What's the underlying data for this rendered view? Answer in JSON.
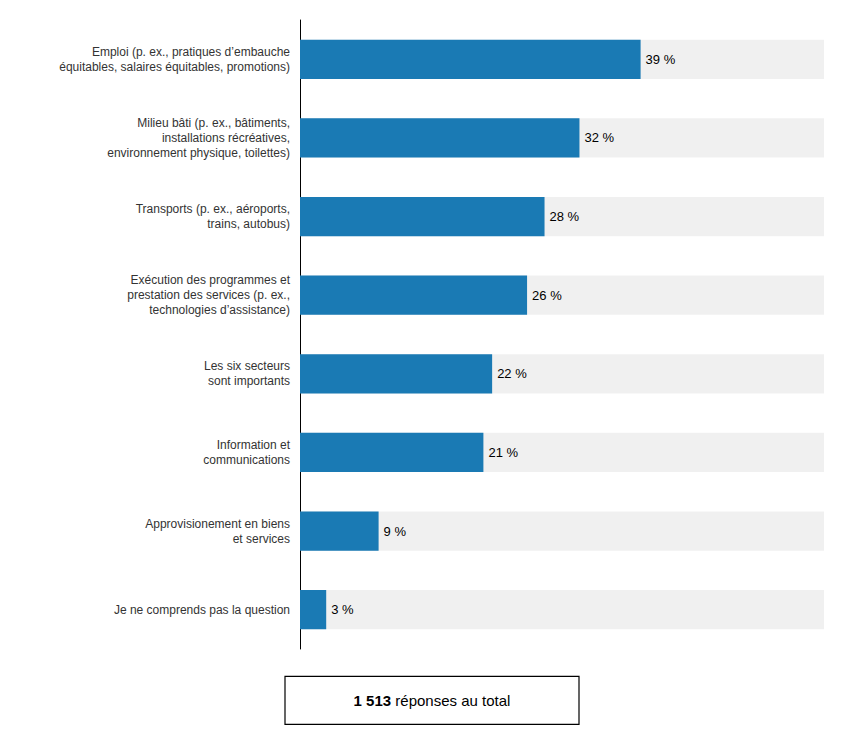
{
  "chart_data": {
    "type": "bar",
    "orientation": "horizontal",
    "categories": [
      "Emploi (p. ex., pratiques d’embauche\néquitables, salaires équitables, promotions)",
      "Milieu bâti (p. ex., bâtiments,\ninstallations récréatives,\nenvironnement physique, toilettes)",
      "Transports (p. ex., aéroports,\ntrains, autobus)",
      "Exécution des programmes et\nprestation des services (p. ex.,\ntechnologies d’assistance)",
      "Les six secteurs\nsont importants",
      "Information et\ncommunications",
      "Approvisionement en biens\net services",
      "Je ne comprends pas la question"
    ],
    "values": [
      39,
      32,
      28,
      26,
      22,
      21,
      9,
      3
    ],
    "value_labels": [
      "39 %",
      "32 %",
      "28 %",
      "26 %",
      "22 %",
      "21 %",
      "9 %",
      "3 %"
    ],
    "data_labels": true,
    "color": "#1a7ab4",
    "xlim": [
      0,
      60
    ],
    "tick_labels": "y",
    "grid": false,
    "annotations": [
      "1 513",
      " réponses au total"
    ]
  }
}
